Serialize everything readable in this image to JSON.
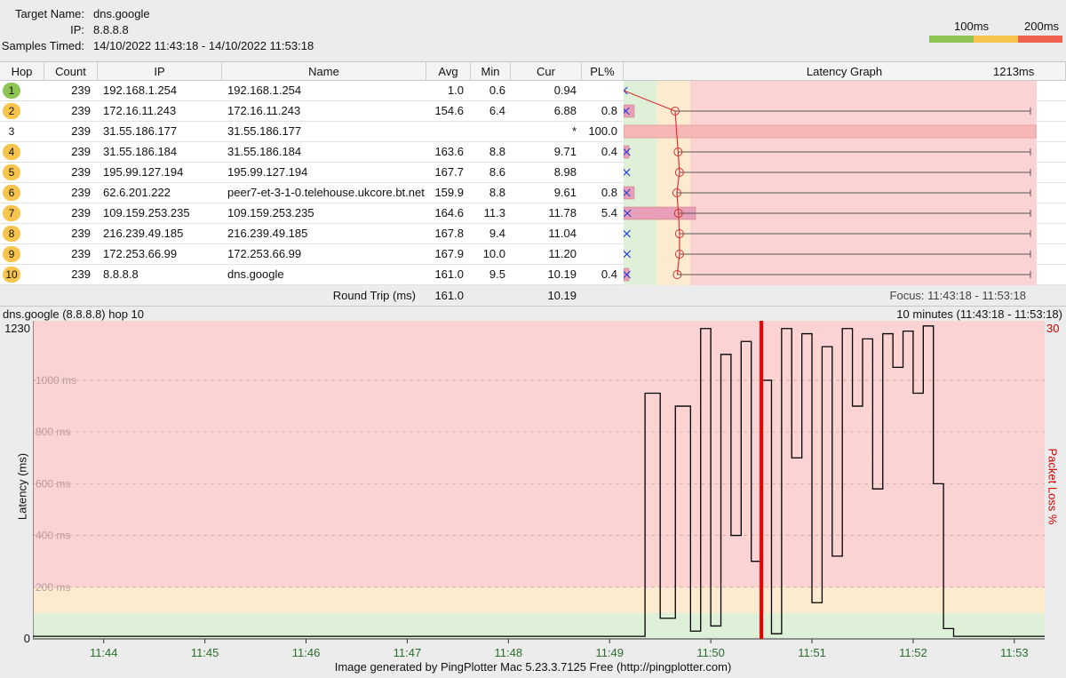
{
  "header": {
    "target_label": "Target Name:",
    "target_value": "dns.google",
    "ip_label": "IP:",
    "ip_value": "8.8.8.8",
    "samples_label": "Samples Timed:",
    "samples_value": "14/10/2022 11:43:18 - 14/10/2022 11:53:18",
    "legend_100": "100ms",
    "legend_200": "200ms"
  },
  "colors": {
    "green": "#8dc454",
    "yellow": "#f7c44d",
    "red": "#f0624d",
    "zone_green": "#dff0d8",
    "zone_yellow": "#fcebcf",
    "zone_red": "#fcd3d3"
  },
  "table": {
    "columns": [
      "Hop",
      "Count",
      "IP",
      "Name",
      "Avg",
      "Min",
      "Cur",
      "PL%",
      "Latency Graph"
    ],
    "graph_max_label": "1213ms",
    "rows": [
      {
        "hop": "1",
        "status": "green",
        "count": "239",
        "ip": "192.168.1.254",
        "name": "192.168.1.254",
        "avg": "1.0",
        "min": "0.6",
        "cur": "0.94",
        "pl": ""
      },
      {
        "hop": "2",
        "status": "yellow",
        "count": "239",
        "ip": "172.16.11.243",
        "name": "172.16.11.243",
        "avg": "154.6",
        "min": "6.4",
        "cur": "6.88",
        "pl": "0.8"
      },
      {
        "hop": "3",
        "status": "none",
        "count": "239",
        "ip": "31.55.186.177",
        "name": "31.55.186.177",
        "avg": "",
        "min": "",
        "cur": "*",
        "pl": "100.0"
      },
      {
        "hop": "4",
        "status": "yellow",
        "count": "239",
        "ip": "31.55.186.184",
        "name": "31.55.186.184",
        "avg": "163.6",
        "min": "8.8",
        "cur": "9.71",
        "pl": "0.4"
      },
      {
        "hop": "5",
        "status": "yellow",
        "count": "239",
        "ip": "195.99.127.194",
        "name": "195.99.127.194",
        "avg": "167.7",
        "min": "8.6",
        "cur": "8.98",
        "pl": ""
      },
      {
        "hop": "6",
        "status": "yellow",
        "count": "239",
        "ip": "62.6.201.222",
        "name": "peer7-et-3-1-0.telehouse.ukcore.bt.net",
        "avg": "159.9",
        "min": "8.8",
        "cur": "9.61",
        "pl": "0.8"
      },
      {
        "hop": "7",
        "status": "yellow",
        "count": "239",
        "ip": "109.159.253.235",
        "name": "109.159.253.235",
        "avg": "164.6",
        "min": "11.3",
        "cur": "11.78",
        "pl": "5.4"
      },
      {
        "hop": "8",
        "status": "yellow",
        "count": "239",
        "ip": "216.239.49.185",
        "name": "216.239.49.185",
        "avg": "167.8",
        "min": "9.4",
        "cur": "11.04",
        "pl": ""
      },
      {
        "hop": "9",
        "status": "yellow",
        "count": "239",
        "ip": "172.253.66.99",
        "name": "172.253.66.99",
        "avg": "167.9",
        "min": "10.0",
        "cur": "11.20",
        "pl": ""
      },
      {
        "hop": "10",
        "status": "yellow",
        "count": "239",
        "ip": "8.8.8.8",
        "name": "dns.google",
        "avg": "161.0",
        "min": "9.5",
        "cur": "10.19",
        "pl": "0.4"
      }
    ],
    "round_trip_label": "Round Trip (ms)",
    "round_trip_avg": "161.0",
    "round_trip_cur": "10.19",
    "focus": "Focus: 11:43:18 - 11:53:18"
  },
  "timeline": {
    "title": "dns.google (8.8.8.8) hop 10",
    "range": "10 minutes (11:43:18 - 11:53:18)",
    "y_max_label": "1230",
    "y_zero_label": "0",
    "pl_max_label": "30",
    "ylabel": "Latency (ms)",
    "y2label": "Packet Loss %",
    "y_grid_labels": [
      "1000 ms",
      "800 ms",
      "600 ms",
      "400 ms",
      "200 ms"
    ],
    "x_ticks": [
      "11:44",
      "11:45",
      "11:46",
      "11:47",
      "11:48",
      "11:49",
      "11:50",
      "11:51",
      "11:52",
      "11:53"
    ]
  },
  "chart_data": {
    "type": "line",
    "title": "dns.google (8.8.8.8) hop 10",
    "xlabel": "",
    "ylabel": "Latency (ms)",
    "y2label": "Packet Loss %",
    "ylim": [
      0,
      1230
    ],
    "y2lim": [
      0,
      30
    ],
    "x_minutes_from_start": [
      0,
      1,
      2,
      3,
      4,
      5,
      5.9,
      6.05,
      6.2,
      6.35,
      6.5,
      6.6,
      6.7,
      6.8,
      6.9,
      7.0,
      7.1,
      7.2,
      7.3,
      7.4,
      7.5,
      7.6,
      7.7,
      7.8,
      7.9,
      8.0,
      8.1,
      8.2,
      8.3,
      8.4,
      8.5,
      8.6,
      8.7,
      8.8,
      8.9,
      9.0,
      9.1,
      9.2,
      10
    ],
    "values_ms": [
      10,
      10,
      10,
      10,
      10,
      10,
      10,
      950,
      80,
      900,
      30,
      1200,
      50,
      1100,
      400,
      1150,
      300,
      1000,
      20,
      1200,
      700,
      1180,
      140,
      1130,
      320,
      1200,
      900,
      1160,
      580,
      1180,
      1050,
      1190,
      950,
      1210,
      600,
      40,
      10,
      10,
      10
    ],
    "loss_marker_time": "11:50:30"
  },
  "footer": "Image generated by PingPlotter Mac 5.23.3.7125 Free (http://pingplotter.com)"
}
